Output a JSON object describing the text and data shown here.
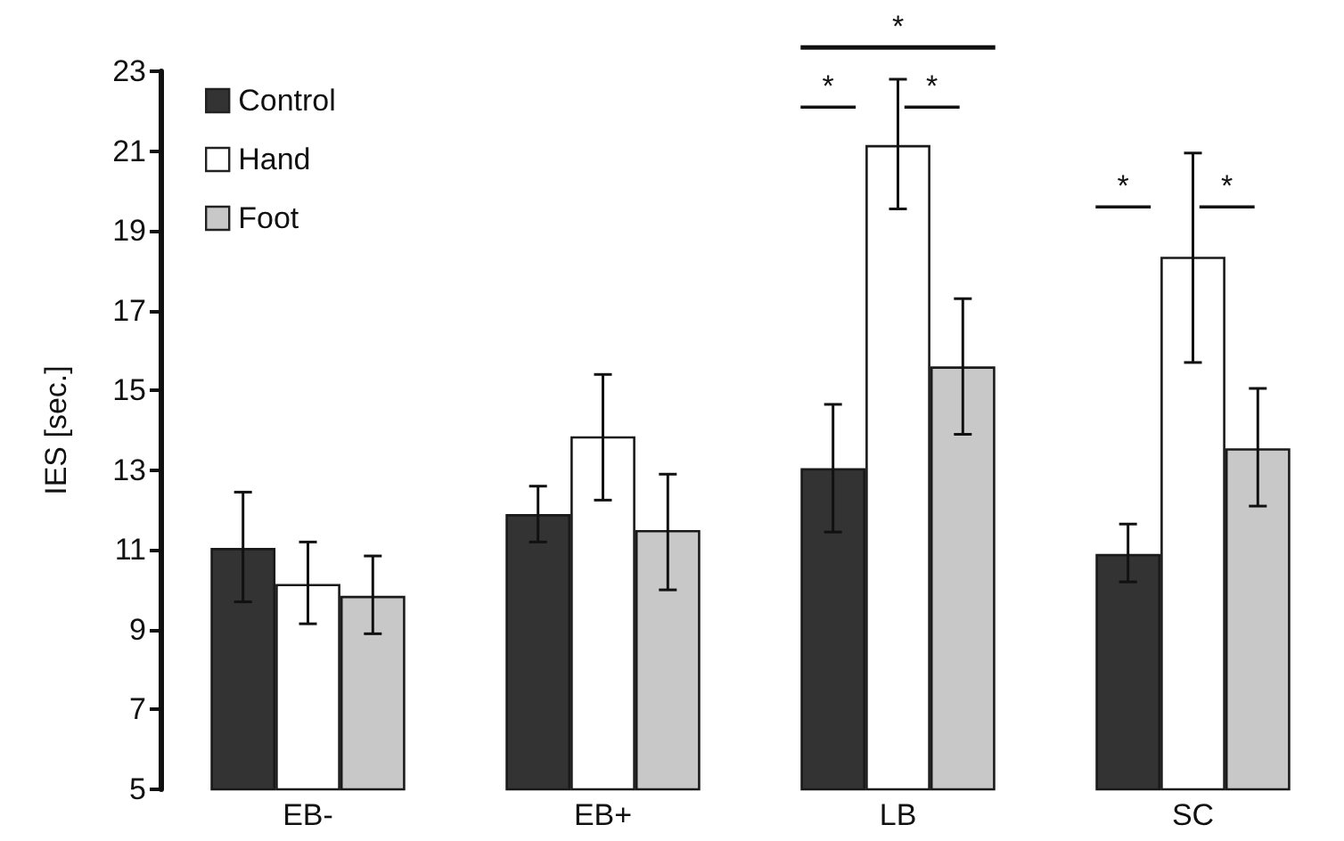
{
  "chart_data": {
    "type": "bar",
    "ylabel": "IES [sec.]",
    "categories": [
      "EB-",
      "EB+",
      "LB",
      "SC"
    ],
    "series": [
      {
        "name": "Control",
        "color": "#333333",
        "values": [
          11.05,
          11.9,
          13.05,
          10.9
        ],
        "errors": [
          [
            9.7,
            12.45
          ],
          [
            11.2,
            12.6
          ],
          [
            11.45,
            14.65
          ],
          [
            10.2,
            11.65
          ]
        ]
      },
      {
        "name": "Hand",
        "color": "#ffffff",
        "values": [
          10.15,
          13.85,
          21.15,
          18.35
        ],
        "errors": [
          [
            9.15,
            11.2
          ],
          [
            12.25,
            15.4
          ],
          [
            19.55,
            22.8
          ],
          [
            15.7,
            20.95
          ]
        ]
      },
      {
        "name": "Foot",
        "color": "#c8c8c8",
        "values": [
          9.85,
          11.5,
          15.6,
          13.55
        ],
        "errors": [
          [
            8.9,
            10.85
          ],
          [
            10.0,
            12.9
          ],
          [
            13.9,
            17.3
          ],
          [
            12.1,
            15.05
          ]
        ]
      }
    ],
    "ylim": [
      5,
      23
    ],
    "yticks": [
      5,
      7,
      9,
      11,
      13,
      15,
      17,
      19,
      21,
      23
    ],
    "annotations": [
      "*",
      "*",
      "*",
      "*",
      "*"
    ],
    "grid": false,
    "legend": "top left"
  }
}
